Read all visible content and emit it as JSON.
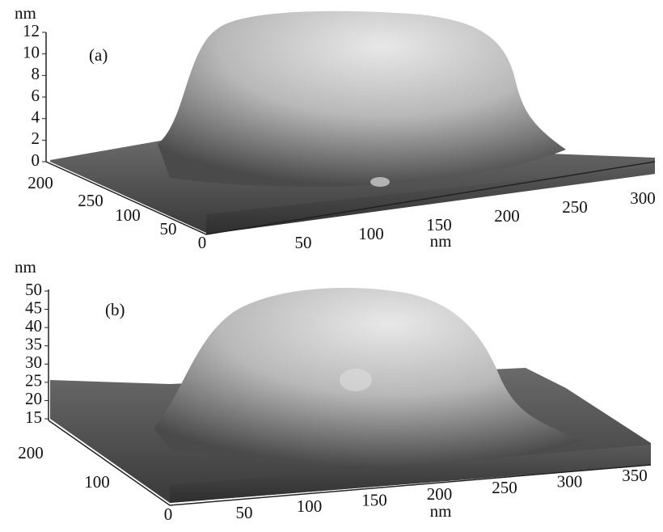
{
  "panels": [
    {
      "label": "(a)",
      "z_unit": "nm",
      "z_ticks": [
        0,
        2,
        4,
        6,
        8,
        10,
        12
      ],
      "depth_ticks": [
        200,
        250,
        100,
        50,
        0
      ],
      "x_ticks": [
        50,
        100,
        150,
        200,
        250,
        300
      ],
      "x_unit": "nm"
    },
    {
      "label": "(b)",
      "z_unit": "nm",
      "z_ticks": [
        15,
        20,
        25,
        30,
        35,
        40,
        45,
        50
      ],
      "depth_ticks": [
        200,
        100,
        0
      ],
      "x_ticks": [
        50,
        100,
        150,
        200,
        250,
        300,
        350
      ],
      "x_unit": "nm"
    }
  ]
}
